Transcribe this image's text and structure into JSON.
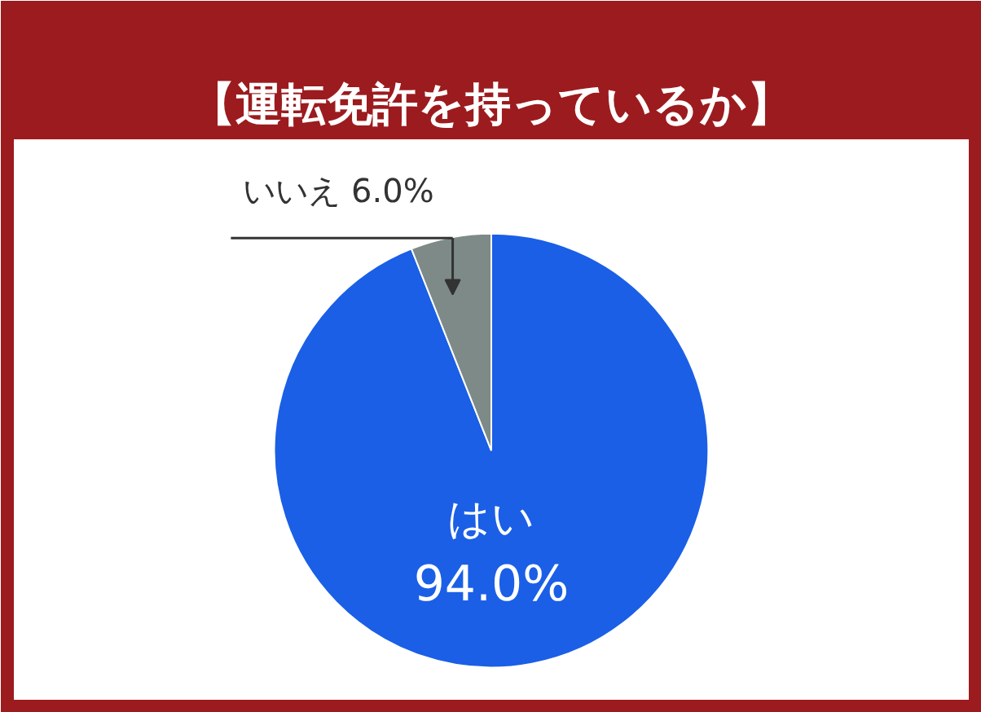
{
  "chart_data": {
    "type": "pie",
    "title": "【運転免許を持っているか】",
    "categories": [
      "はい",
      "いいえ"
    ],
    "values": [
      94.0,
      6.0
    ],
    "colors": [
      "#1a5fe6",
      "#7d8a88"
    ],
    "value_labels": [
      "94.0%",
      "6.0%"
    ]
  }
}
